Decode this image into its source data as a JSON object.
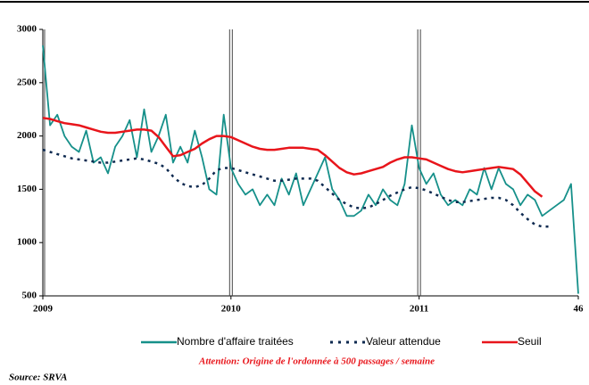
{
  "chart_data": {
    "type": "line",
    "x": [
      0,
      2,
      4,
      6,
      8,
      10,
      12,
      14,
      16,
      18,
      20,
      22,
      24,
      26,
      28,
      30,
      32,
      34,
      36,
      38,
      40,
      42,
      44,
      46,
      48,
      50,
      52,
      54,
      56,
      58,
      60,
      62,
      64,
      66,
      68,
      70,
      72,
      74,
      76,
      78,
      80,
      82,
      84,
      86,
      88,
      90,
      92,
      94,
      96,
      98,
      100,
      102,
      104,
      106,
      108,
      110,
      112,
      114,
      116,
      118,
      120,
      122,
      124,
      126,
      128,
      130,
      132,
      134,
      136,
      138,
      140,
      142,
      144,
      146,
      148
    ],
    "series": [
      {
        "name": "Nombre d'affaire traitées",
        "color": "#16908a",
        "dash": false,
        "values": [
          2850,
          2100,
          2200,
          2000,
          1900,
          1850,
          2050,
          1750,
          1800,
          1650,
          1900,
          2000,
          2150,
          1800,
          2250,
          1850,
          2000,
          2200,
          1750,
          1900,
          1750,
          2050,
          1800,
          1500,
          1450,
          2200,
          1700,
          1550,
          1450,
          1500,
          1350,
          1450,
          1350,
          1600,
          1450,
          1650,
          1350,
          1500,
          1650,
          1800,
          1500,
          1400,
          1250,
          1250,
          1300,
          1450,
          1350,
          1500,
          1400,
          1350,
          1550,
          2100,
          1700,
          1550,
          1650,
          1450,
          1350,
          1400,
          1350,
          1500,
          1450,
          1700,
          1500,
          1700,
          1550,
          1500,
          1350,
          1450,
          1400,
          1250,
          1300,
          1350,
          1400,
          1550,
          520
        ]
      },
      {
        "name": "Valeur attendue",
        "color": "#0e2a50",
        "dash": true,
        "values": [
          1870,
          1850,
          1830,
          1810,
          1790,
          1780,
          1770,
          1760,
          1750,
          1750,
          1760,
          1770,
          1780,
          1790,
          1780,
          1760,
          1740,
          1700,
          1620,
          1560,
          1530,
          1520,
          1540,
          1600,
          1680,
          1700,
          1700,
          1680,
          1660,
          1640,
          1620,
          1600,
          1580,
          1580,
          1590,
          1600,
          1600,
          1600,
          1580,
          1520,
          1460,
          1400,
          1360,
          1330,
          1320,
          1330,
          1360,
          1400,
          1440,
          1470,
          1500,
          1520,
          1510,
          1490,
          1460,
          1430,
          1400,
          1380,
          1380,
          1390,
          1400,
          1410,
          1420,
          1420,
          1400,
          1350,
          1280,
          1220,
          1170,
          1150,
          1150,
          null,
          null,
          null,
          null
        ]
      },
      {
        "name": "Seuil",
        "color": "#e8151b",
        "dash": false,
        "values": [
          2170,
          2160,
          2140,
          2120,
          2110,
          2100,
          2080,
          2060,
          2040,
          2030,
          2030,
          2040,
          2050,
          2060,
          2060,
          2050,
          1990,
          1900,
          1810,
          1820,
          1850,
          1880,
          1930,
          1970,
          2000,
          2000,
          1990,
          1960,
          1930,
          1900,
          1880,
          1870,
          1870,
          1880,
          1890,
          1890,
          1890,
          1880,
          1870,
          1820,
          1760,
          1700,
          1660,
          1640,
          1650,
          1670,
          1690,
          1710,
          1750,
          1780,
          1800,
          1800,
          1790,
          1780,
          1750,
          1720,
          1690,
          1670,
          1660,
          1670,
          1680,
          1690,
          1700,
          1710,
          1700,
          1690,
          1640,
          1560,
          1480,
          1430,
          null,
          null,
          null,
          null,
          null
        ]
      }
    ],
    "xlim": [
      0,
      148
    ],
    "xticks": [
      {
        "value": 0,
        "label": "2009"
      },
      {
        "value": 52,
        "label": "2010"
      },
      {
        "value": 104,
        "label": "2011"
      },
      {
        "value": 148,
        "label": "46"
      }
    ],
    "ylim": [
      500,
      3000
    ],
    "yticks": [
      500,
      1000,
      1500,
      2000,
      2500,
      3000
    ],
    "legend": "bottom",
    "annotation": "Attention: Origine de l'ordonnée à 500 passages / semaine",
    "source": "Source: SRVA"
  }
}
